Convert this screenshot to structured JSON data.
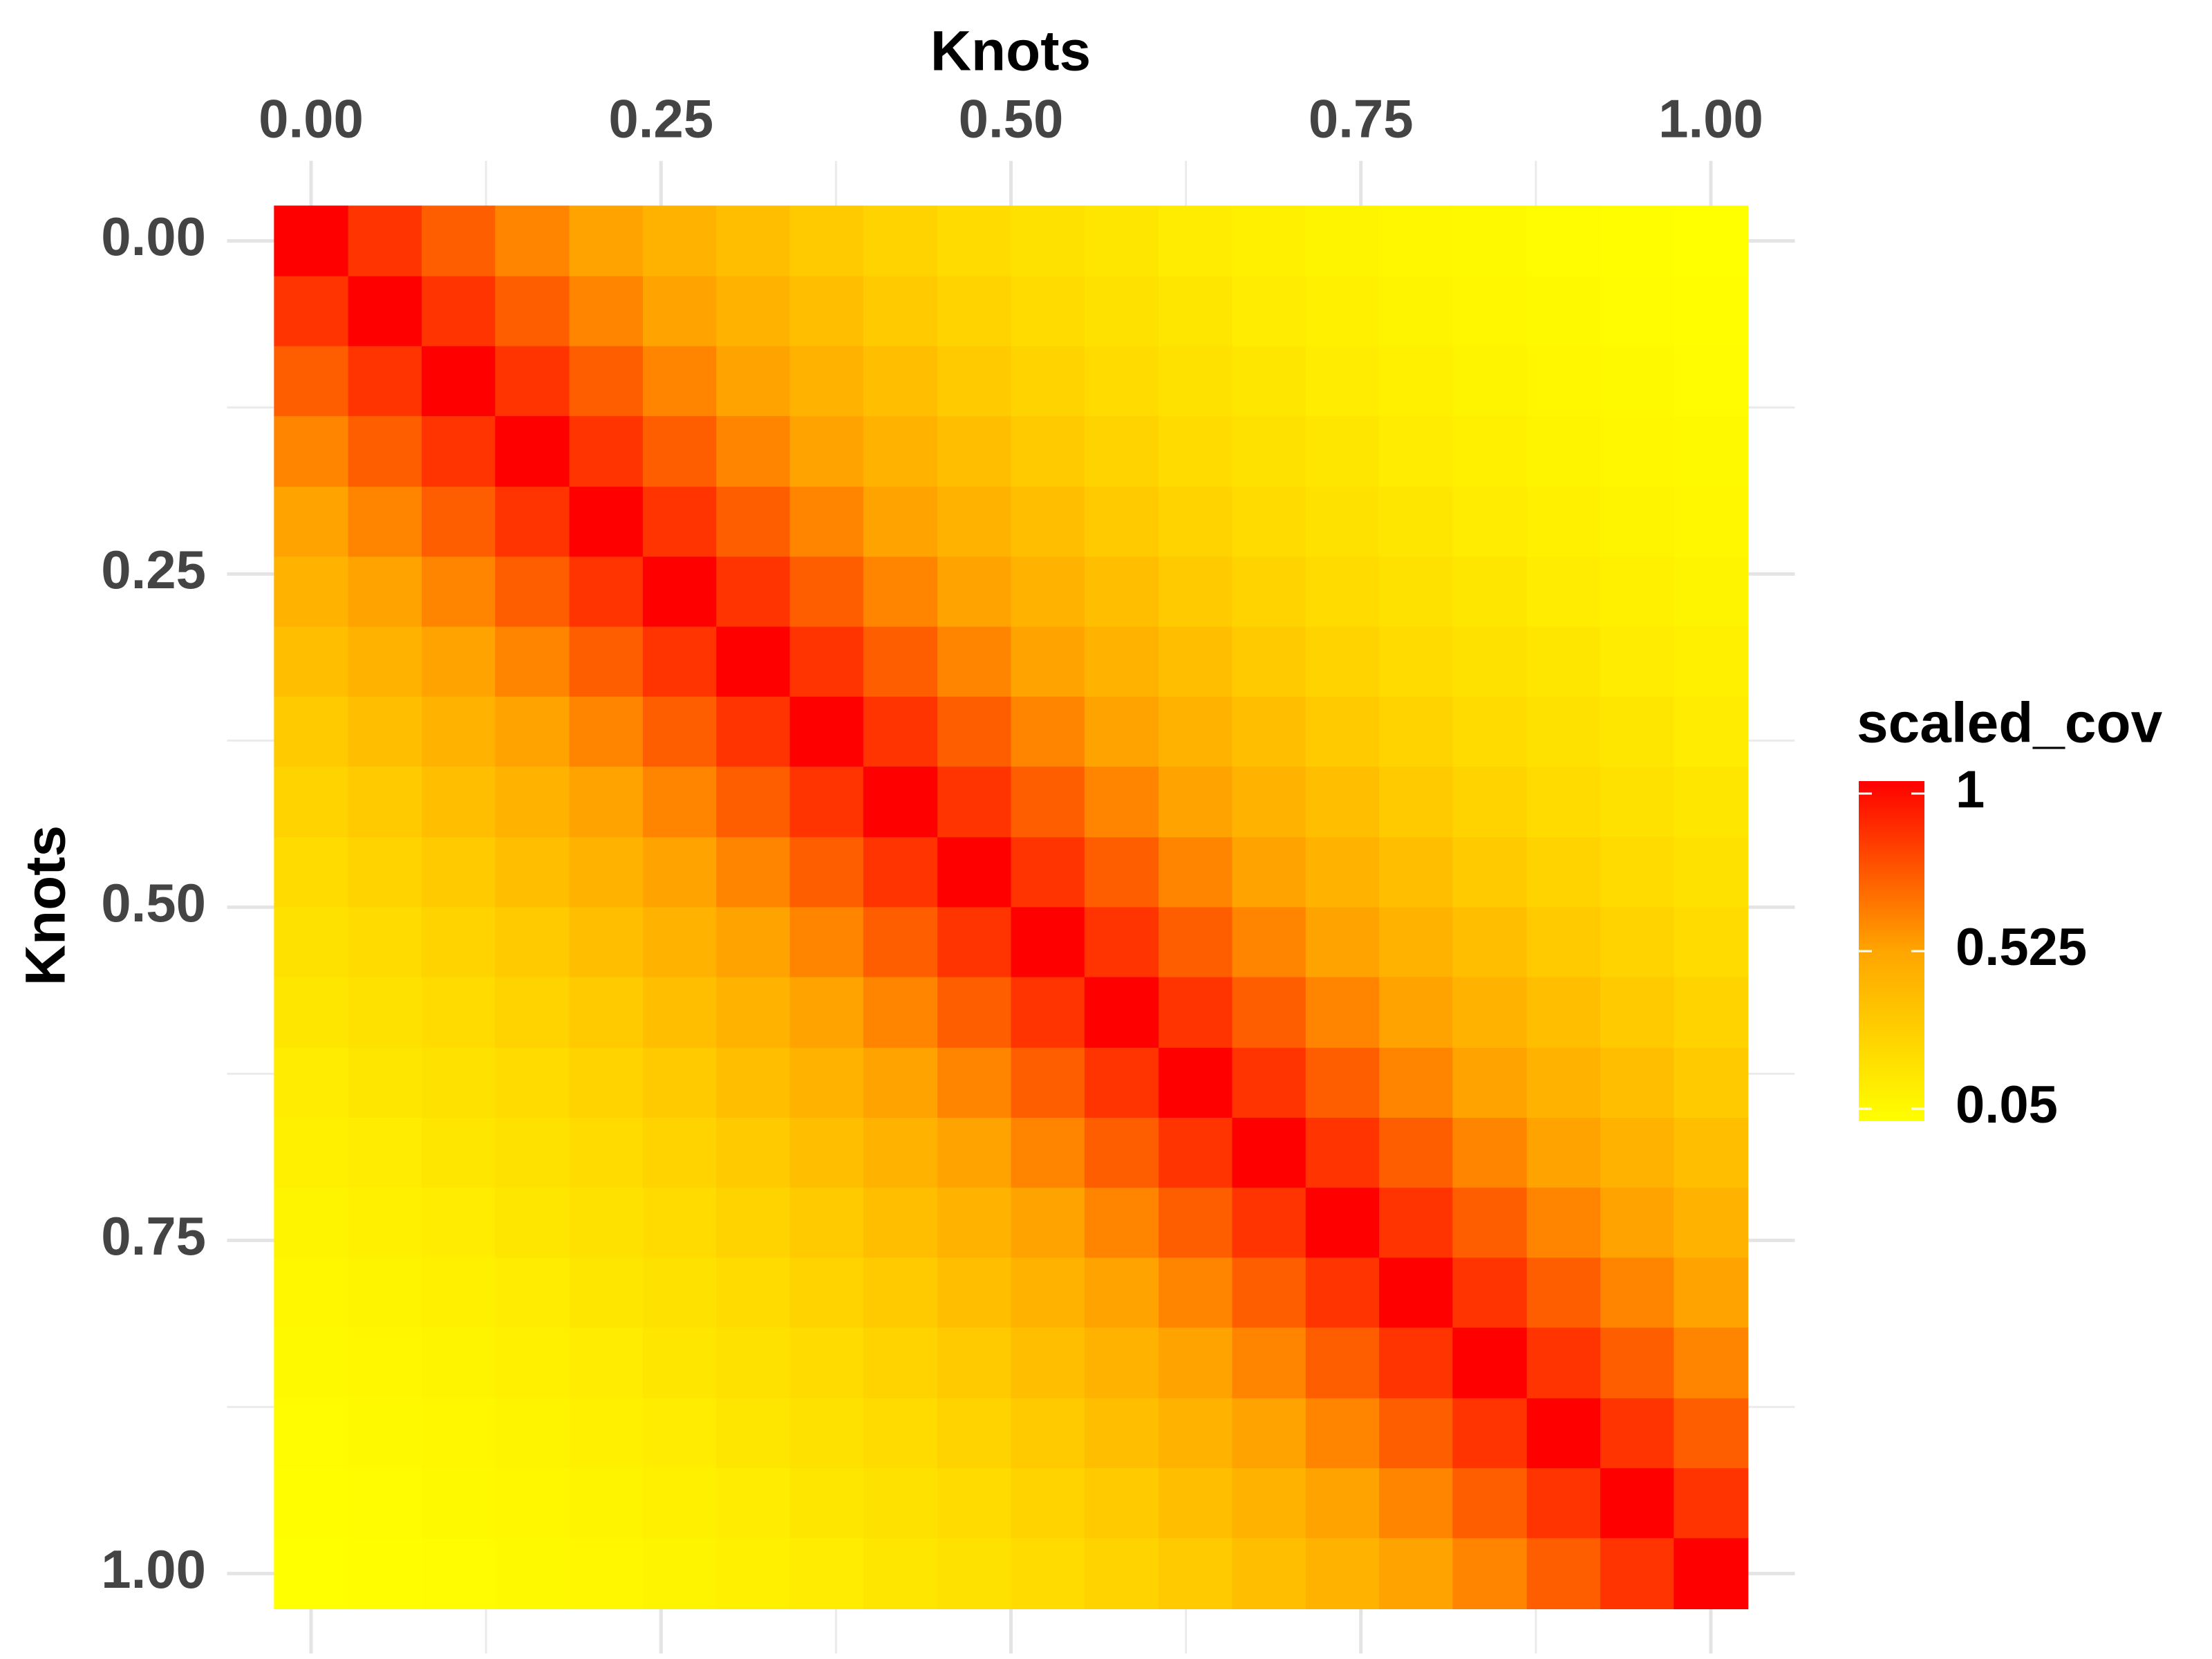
{
  "chart_data": {
    "type": "heatmap",
    "x_title": "Knots",
    "y_title": "Knots",
    "x": [
      0,
      0.053,
      0.105,
      0.158,
      0.211,
      0.263,
      0.316,
      0.368,
      0.421,
      0.474,
      0.526,
      0.579,
      0.632,
      0.684,
      0.737,
      0.789,
      0.842,
      0.895,
      0.947,
      1
    ],
    "y": [
      0,
      0.053,
      0.105,
      0.158,
      0.211,
      0.263,
      0.316,
      0.368,
      0.421,
      0.474,
      0.526,
      0.579,
      0.632,
      0.684,
      0.737,
      0.789,
      0.842,
      0.895,
      0.947,
      1
    ],
    "z": [
      [
        1,
        0.85,
        0.73,
        0.62,
        0.53,
        0.45,
        0.39,
        0.33,
        0.28,
        0.24,
        0.21,
        0.18,
        0.15,
        0.13,
        0.11,
        0.09,
        0.08,
        0.07,
        0.06,
        0.05
      ],
      [
        0.85,
        1,
        0.85,
        0.73,
        0.62,
        0.53,
        0.45,
        0.39,
        0.33,
        0.28,
        0.24,
        0.21,
        0.18,
        0.15,
        0.13,
        0.11,
        0.09,
        0.08,
        0.07,
        0.06
      ],
      [
        0.73,
        0.85,
        1,
        0.85,
        0.73,
        0.62,
        0.53,
        0.45,
        0.39,
        0.33,
        0.28,
        0.24,
        0.21,
        0.18,
        0.15,
        0.13,
        0.11,
        0.09,
        0.08,
        0.07
      ],
      [
        0.62,
        0.73,
        0.85,
        1,
        0.85,
        0.73,
        0.62,
        0.53,
        0.45,
        0.39,
        0.33,
        0.28,
        0.24,
        0.21,
        0.18,
        0.15,
        0.13,
        0.11,
        0.09,
        0.08
      ],
      [
        0.53,
        0.62,
        0.73,
        0.85,
        1,
        0.85,
        0.73,
        0.62,
        0.53,
        0.45,
        0.39,
        0.33,
        0.28,
        0.24,
        0.21,
        0.18,
        0.15,
        0.13,
        0.11,
        0.09
      ],
      [
        0.45,
        0.53,
        0.62,
        0.73,
        0.85,
        1,
        0.85,
        0.73,
        0.62,
        0.53,
        0.45,
        0.39,
        0.33,
        0.28,
        0.24,
        0.21,
        0.18,
        0.15,
        0.13,
        0.11
      ],
      [
        0.39,
        0.45,
        0.53,
        0.62,
        0.73,
        0.85,
        1,
        0.85,
        0.73,
        0.62,
        0.53,
        0.45,
        0.39,
        0.33,
        0.28,
        0.24,
        0.21,
        0.18,
        0.15,
        0.13
      ],
      [
        0.33,
        0.39,
        0.45,
        0.53,
        0.62,
        0.73,
        0.85,
        1,
        0.85,
        0.73,
        0.62,
        0.53,
        0.45,
        0.39,
        0.33,
        0.28,
        0.24,
        0.21,
        0.18,
        0.15
      ],
      [
        0.28,
        0.33,
        0.39,
        0.45,
        0.53,
        0.62,
        0.73,
        0.85,
        1,
        0.85,
        0.73,
        0.62,
        0.53,
        0.45,
        0.39,
        0.33,
        0.28,
        0.24,
        0.21,
        0.18
      ],
      [
        0.24,
        0.28,
        0.33,
        0.39,
        0.45,
        0.53,
        0.62,
        0.73,
        0.85,
        1,
        0.85,
        0.73,
        0.62,
        0.53,
        0.45,
        0.39,
        0.33,
        0.28,
        0.24,
        0.21
      ],
      [
        0.21,
        0.24,
        0.28,
        0.33,
        0.39,
        0.45,
        0.53,
        0.62,
        0.73,
        0.85,
        1,
        0.85,
        0.73,
        0.62,
        0.53,
        0.45,
        0.39,
        0.33,
        0.28,
        0.24
      ],
      [
        0.18,
        0.21,
        0.24,
        0.28,
        0.33,
        0.39,
        0.45,
        0.53,
        0.62,
        0.73,
        0.85,
        1,
        0.85,
        0.73,
        0.62,
        0.53,
        0.45,
        0.39,
        0.33,
        0.28
      ],
      [
        0.15,
        0.18,
        0.21,
        0.24,
        0.28,
        0.33,
        0.39,
        0.45,
        0.53,
        0.62,
        0.73,
        0.85,
        1,
        0.85,
        0.73,
        0.62,
        0.53,
        0.45,
        0.39,
        0.33
      ],
      [
        0.13,
        0.15,
        0.18,
        0.21,
        0.24,
        0.28,
        0.33,
        0.39,
        0.45,
        0.53,
        0.62,
        0.73,
        0.85,
        1,
        0.85,
        0.73,
        0.62,
        0.53,
        0.45,
        0.39
      ],
      [
        0.11,
        0.13,
        0.15,
        0.18,
        0.21,
        0.24,
        0.28,
        0.33,
        0.39,
        0.45,
        0.53,
        0.62,
        0.73,
        0.85,
        1,
        0.85,
        0.73,
        0.62,
        0.53,
        0.45
      ],
      [
        0.09,
        0.11,
        0.13,
        0.15,
        0.18,
        0.21,
        0.24,
        0.28,
        0.33,
        0.39,
        0.45,
        0.53,
        0.62,
        0.73,
        0.85,
        1,
        0.85,
        0.73,
        0.62,
        0.53
      ],
      [
        0.08,
        0.09,
        0.11,
        0.13,
        0.15,
        0.18,
        0.21,
        0.24,
        0.28,
        0.33,
        0.39,
        0.45,
        0.53,
        0.62,
        0.73,
        0.85,
        1,
        0.85,
        0.73,
        0.62
      ],
      [
        0.07,
        0.08,
        0.09,
        0.11,
        0.13,
        0.15,
        0.18,
        0.21,
        0.24,
        0.28,
        0.33,
        0.39,
        0.45,
        0.53,
        0.62,
        0.73,
        0.85,
        1,
        0.85,
        0.73
      ],
      [
        0.06,
        0.07,
        0.08,
        0.09,
        0.11,
        0.13,
        0.15,
        0.18,
        0.21,
        0.24,
        0.28,
        0.33,
        0.39,
        0.45,
        0.53,
        0.62,
        0.73,
        0.85,
        1,
        0.85
      ],
      [
        0.05,
        0.06,
        0.07,
        0.08,
        0.09,
        0.11,
        0.13,
        0.15,
        0.18,
        0.21,
        0.24,
        0.28,
        0.33,
        0.39,
        0.45,
        0.53,
        0.62,
        0.73,
        0.85,
        1
      ]
    ],
    "xlim": [
      -0.06,
      1.06
    ],
    "ylim": [
      -0.06,
      1.06
    ],
    "y_reversed": true,
    "x_axis_position": "top",
    "xticks": [
      {
        "value": 0,
        "label": "0.00"
      },
      {
        "value": 0.25,
        "label": "0.25"
      },
      {
        "value": 0.5,
        "label": "0.50"
      },
      {
        "value": 0.75,
        "label": "0.75"
      },
      {
        "value": 1,
        "label": "1.00"
      }
    ],
    "yticks": [
      {
        "value": 0,
        "label": "0.00"
      },
      {
        "value": 0.25,
        "label": "0.25"
      },
      {
        "value": 0.5,
        "label": "0.50"
      },
      {
        "value": 0.75,
        "label": "0.75"
      },
      {
        "value": 1,
        "label": "1.00"
      }
    ],
    "x_minor_ticks": [
      0.125,
      0.375,
      0.625,
      0.875
    ],
    "y_minor_ticks": [
      0.125,
      0.375,
      0.625,
      0.875
    ],
    "grid": true,
    "colorbar": {
      "title": "scaled_cov",
      "lim": [
        0.05,
        1
      ],
      "ticks": [
        0.05,
        0.525,
        1
      ],
      "colors": [
        "#ffff00",
        "#ffa500",
        "#ff0000"
      ]
    }
  }
}
